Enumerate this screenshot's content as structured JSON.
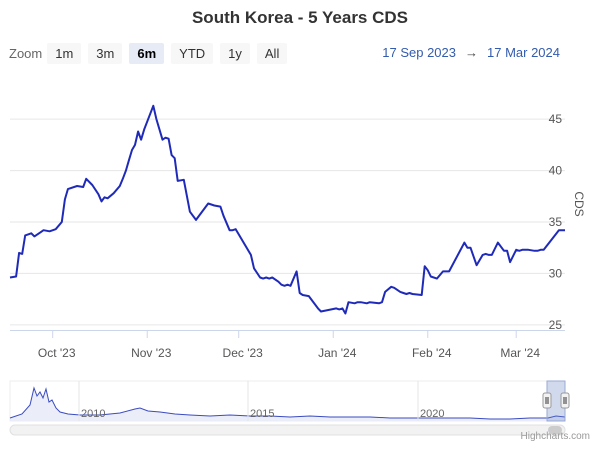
{
  "title": "South Korea - 5 Years CDS",
  "zoom": {
    "label": "Zoom",
    "buttons": [
      "1m",
      "3m",
      "6m",
      "YTD",
      "1y",
      "All"
    ],
    "active": "6m"
  },
  "range": {
    "from": "17 Sep 2023",
    "arrow": "→",
    "to": "17 Mar 2024"
  },
  "credits": "Highcharts.com",
  "colors": {
    "line": "#1f2bb8",
    "grid": "#e6e6e6",
    "navigator_fill": "#e6e8f7",
    "navigator_line": "#3a4cc0"
  },
  "chart_data": {
    "type": "line",
    "title": "South Korea - 5 Years CDS",
    "ylabel": "CDS",
    "ylim": [
      24.5,
      49
    ],
    "yticks": [
      25,
      30,
      35,
      40,
      45
    ],
    "xlim": [
      "2023-09-17",
      "2024-03-17"
    ],
    "xticks": [
      {
        "date": "2023-10-01",
        "label": "Oct '23"
      },
      {
        "date": "2023-11-01",
        "label": "Nov '23"
      },
      {
        "date": "2023-12-01",
        "label": "Dec '23"
      },
      {
        "date": "2024-01-01",
        "label": "Jan '24"
      },
      {
        "date": "2024-02-01",
        "label": "Feb '24"
      },
      {
        "date": "2024-03-01",
        "label": "Mar '24"
      }
    ],
    "grid": true,
    "series": [
      {
        "x": [
          "2023-09-17",
          "2023-09-19",
          "2023-09-20",
          "2023-09-21",
          "2023-09-22",
          "2023-09-24",
          "2023-09-25",
          "2023-09-27",
          "2023-09-28",
          "2023-09-30",
          "2023-10-02",
          "2023-10-04",
          "2023-10-05",
          "2023-10-06",
          "2023-10-09",
          "2023-10-11",
          "2023-10-12",
          "2023-10-14",
          "2023-10-16",
          "2023-10-17",
          "2023-10-18",
          "2023-10-19",
          "2023-10-21",
          "2023-10-23",
          "2023-10-24",
          "2023-10-25",
          "2023-10-26",
          "2023-10-27",
          "2023-10-28",
          "2023-10-29",
          "2023-10-30",
          "2023-10-31",
          "2023-11-03",
          "2023-11-04",
          "2023-11-06",
          "2023-11-07",
          "2023-11-08",
          "2023-11-09",
          "2023-11-10",
          "2023-11-11",
          "2023-11-13",
          "2023-11-15",
          "2023-11-17",
          "2023-11-21",
          "2023-11-22",
          "2023-11-23",
          "2023-11-25",
          "2023-11-26",
          "2023-11-28",
          "2023-11-29",
          "2023-11-30",
          "2023-12-05",
          "2023-12-06",
          "2023-12-08",
          "2023-12-09",
          "2023-12-10",
          "2023-12-11",
          "2023-12-12",
          "2023-12-14",
          "2023-12-15",
          "2023-12-16",
          "2023-12-17",
          "2023-12-18",
          "2023-12-20",
          "2023-12-21",
          "2023-12-22",
          "2023-12-24",
          "2023-12-27",
          "2023-12-28",
          "2024-01-02",
          "2024-01-03",
          "2024-01-04",
          "2024-01-05",
          "2024-01-06",
          "2024-01-08",
          "2024-01-09",
          "2024-01-10",
          "2024-01-12",
          "2024-01-13",
          "2024-01-16",
          "2024-01-17",
          "2024-01-18",
          "2024-01-20",
          "2024-01-21",
          "2024-01-23",
          "2024-01-24",
          "2024-01-25",
          "2024-01-26",
          "2024-01-27",
          "2024-01-30",
          "2024-01-31",
          "2024-02-01",
          "2024-02-02",
          "2024-02-04",
          "2024-02-06",
          "2024-02-07",
          "2024-02-08",
          "2024-02-13",
          "2024-02-14",
          "2024-02-15",
          "2024-02-17",
          "2024-02-19",
          "2024-02-20",
          "2024-02-21",
          "2024-02-22",
          "2024-02-24",
          "2024-02-26",
          "2024-02-27",
          "2024-02-28",
          "2024-03-01",
          "2024-03-02",
          "2024-03-03",
          "2024-03-05",
          "2024-03-07",
          "2024-03-08",
          "2024-03-09",
          "2024-03-10",
          "2024-03-15",
          "2024-03-17"
        ],
        "values": [
          29.6,
          29.7,
          32.0,
          31.9,
          33.7,
          33.9,
          33.6,
          34.0,
          34.2,
          34.1,
          34.3,
          35.0,
          37.2,
          38.2,
          38.5,
          38.4,
          39.2,
          38.6,
          37.7,
          37.0,
          37.4,
          37.3,
          37.8,
          38.5,
          39.2,
          40.0,
          41.0,
          42.0,
          42.5,
          43.8,
          43.0,
          44.0,
          46.3,
          45.0,
          43.0,
          43.2,
          43.1,
          41.5,
          41.2,
          39.0,
          39.1,
          36.0,
          35.2,
          36.8,
          36.7,
          36.6,
          36.5,
          35.6,
          34.2,
          34.2,
          34.3,
          31.8,
          30.5,
          29.6,
          29.5,
          29.6,
          29.5,
          29.6,
          29.2,
          28.9,
          28.8,
          28.9,
          28.8,
          30.2,
          28.1,
          27.9,
          27.8,
          26.6,
          26.3,
          26.6,
          26.5,
          26.6,
          26.1,
          27.2,
          27.1,
          27.2,
          27.2,
          27.1,
          27.2,
          27.1,
          27.2,
          28.2,
          28.7,
          28.6,
          28.2,
          28.1,
          28.0,
          28.1,
          28.0,
          27.9,
          30.7,
          30.3,
          29.7,
          29.5,
          30.2,
          30.2,
          30.2,
          33.0,
          32.5,
          32.5,
          30.8,
          31.8,
          31.9,
          31.8,
          31.8,
          33.0,
          32.2,
          32.2,
          31.1,
          32.3,
          32.2,
          32.3,
          32.3,
          32.2,
          32.2,
          32.3,
          32.3,
          34.2,
          34.2
        ]
      }
    ]
  },
  "navigator": {
    "year_labels": [
      "2010",
      "2015",
      "2020"
    ]
  }
}
